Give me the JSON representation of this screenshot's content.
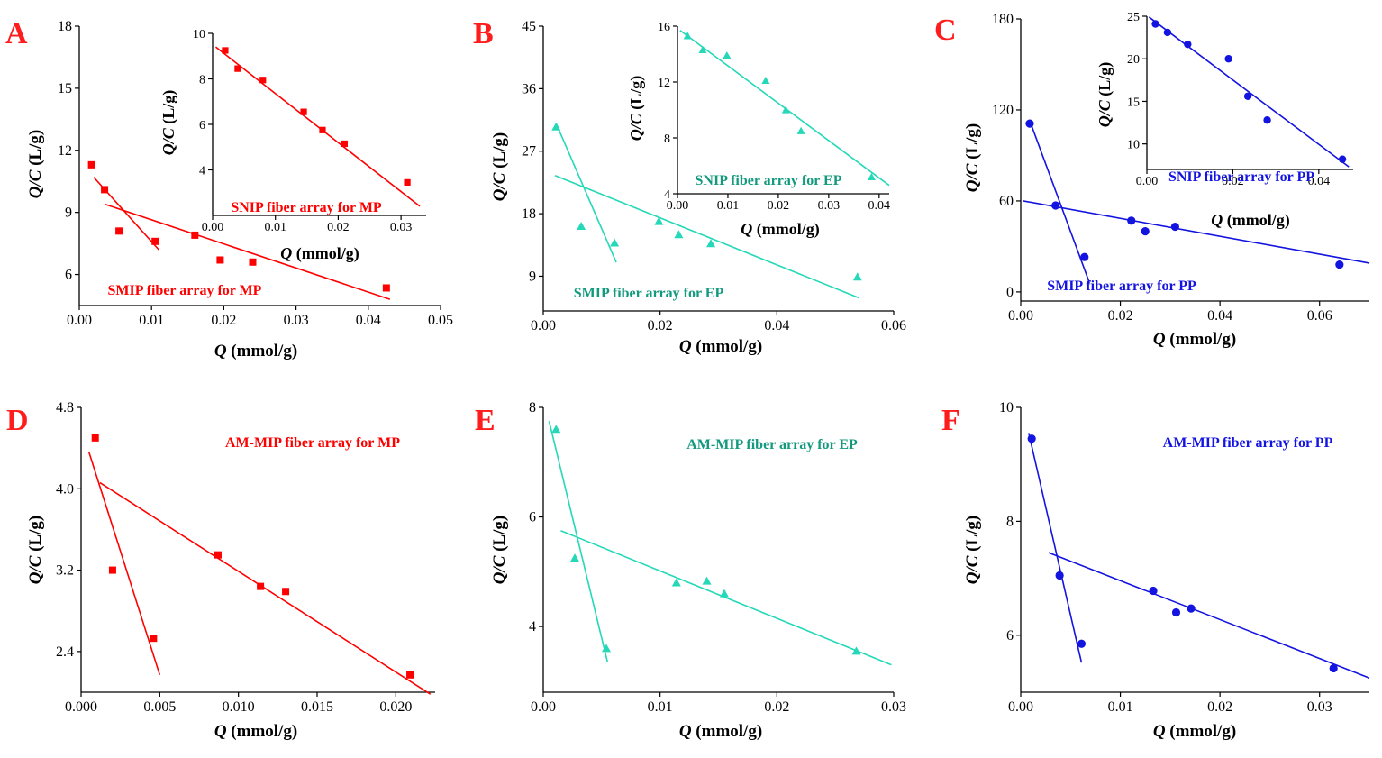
{
  "chart_data": [
    {
      "type": "scatter",
      "panel": "A",
      "color": "#ff0000",
      "marker": "square",
      "xlabel_q": "Q",
      "xlabel_unit": " (mmol/g)",
      "ylabel_q": "Q/C",
      "ylabel_unit": " (L/g)",
      "xlim": [
        0,
        0.05
      ],
      "ylim": [
        4.5,
        18
      ],
      "xticks": [
        0,
        0.01,
        0.02,
        0.03,
        0.04,
        0.05
      ],
      "xtick_labels": [
        "0.00",
        "0.01",
        "0.02",
        "0.03",
        "0.04",
        "0.05"
      ],
      "yticks": [
        6,
        9,
        12,
        15,
        18
      ],
      "ytick_labels": [
        "6",
        "9",
        "12",
        "15",
        "18"
      ],
      "points": [
        [
          0.0017,
          11.3
        ],
        [
          0.0035,
          10.1
        ],
        [
          0.0055,
          8.1
        ],
        [
          0.0105,
          7.6
        ],
        [
          0.016,
          7.9
        ],
        [
          0.0195,
          6.7
        ],
        [
          0.024,
          6.6
        ],
        [
          0.0425,
          5.35
        ]
      ],
      "fits": [
        [
          [
            0.002,
            10.7
          ],
          [
            0.011,
            7.2
          ]
        ],
        [
          [
            0.0035,
            9.4
          ],
          [
            0.043,
            4.8
          ]
        ]
      ],
      "annotation": "SMIP fiber array for MP",
      "inset": {
        "xlabel_q": "Q",
        "xlabel_unit": " (mmol/g)",
        "ylabel_q": "Q/C",
        "ylabel_unit": " (L/g)",
        "xlim": [
          0,
          0.034
        ],
        "ylim": [
          2,
          10
        ],
        "xticks": [
          0,
          0.01,
          0.02,
          0.03
        ],
        "xtick_labels": [
          "0.00",
          "0.01",
          "0.02",
          "0.03"
        ],
        "yticks": [
          4,
          6,
          8,
          10
        ],
        "ytick_labels": [
          "4",
          "6",
          "8",
          "10"
        ],
        "points": [
          [
            0.002,
            9.25
          ],
          [
            0.004,
            8.45
          ],
          [
            0.008,
            7.95
          ],
          [
            0.0145,
            6.55
          ],
          [
            0.0175,
            5.75
          ],
          [
            0.021,
            5.15
          ],
          [
            0.031,
            3.45
          ]
        ],
        "fits": [
          [
            [
              0.0005,
              9.4
            ],
            [
              0.033,
              2.4
            ]
          ]
        ],
        "annotation": "SNIP fiber array for MP"
      }
    },
    {
      "type": "scatter",
      "panel": "B",
      "color": "#24d8b8",
      "annot_color": "#139a7e",
      "marker": "triangle",
      "xlabel_q": "Q",
      "xlabel_unit": " (mmol/g)",
      "ylabel_q": "Q/C",
      "ylabel_unit": " (L/g)",
      "xlim": [
        0,
        0.06
      ],
      "ylim": [
        4,
        45
      ],
      "xticks": [
        0,
        0.02,
        0.04,
        0.06
      ],
      "xtick_labels": [
        "0.00",
        "0.02",
        "0.04",
        "0.06"
      ],
      "yticks": [
        9,
        18,
        27,
        36,
        45
      ],
      "ytick_labels": [
        "9",
        "18",
        "27",
        "36",
        "45"
      ],
      "points": [
        [
          0.0022,
          30.5
        ],
        [
          0.0065,
          16.2
        ],
        [
          0.0122,
          13.8
        ],
        [
          0.0198,
          16.9
        ],
        [
          0.0232,
          15.0
        ],
        [
          0.0287,
          13.7
        ],
        [
          0.0538,
          8.9
        ]
      ],
      "fits": [
        [
          [
            0.0022,
            31.0
          ],
          [
            0.0125,
            11.0
          ]
        ],
        [
          [
            0.002,
            23.5
          ],
          [
            0.054,
            5.9
          ]
        ]
      ],
      "annotation": "SMIP fiber array for EP",
      "inset": {
        "xlabel_q": "Q",
        "xlabel_unit": " (mmol/g)",
        "ylabel_q": "Q/C",
        "ylabel_unit": " (L/g)",
        "xlim": [
          0,
          0.042
        ],
        "ylim": [
          4,
          16
        ],
        "xticks": [
          0,
          0.01,
          0.02,
          0.03,
          0.04
        ],
        "xtick_labels": [
          "0.00",
          "0.01",
          "0.02",
          "0.03",
          "0.04"
        ],
        "yticks": [
          4,
          8,
          12,
          16
        ],
        "ytick_labels": [
          "4",
          "8",
          "12",
          "16"
        ],
        "points": [
          [
            0.002,
            15.3
          ],
          [
            0.005,
            14.3
          ],
          [
            0.0098,
            13.9
          ],
          [
            0.0175,
            12.1
          ],
          [
            0.0215,
            10.0
          ],
          [
            0.0245,
            8.5
          ],
          [
            0.0385,
            5.2
          ]
        ],
        "fits": [
          [
            [
              0.0005,
              15.7
            ],
            [
              0.042,
              4.6
            ]
          ]
        ],
        "annotation": "SNIP fiber array for EP"
      }
    },
    {
      "type": "scatter",
      "panel": "C",
      "color": "#1414e0",
      "marker": "circle",
      "xlabel_q": "Q",
      "xlabel_unit": " (mmol/g)",
      "ylabel_q": "Q/C",
      "ylabel_unit": " (L/g)",
      "xlim": [
        0,
        0.07
      ],
      "ylim": [
        -6,
        180
      ],
      "xticks": [
        0,
        0.02,
        0.04,
        0.06
      ],
      "xtick_labels": [
        "0.00",
        "0.02",
        "0.04",
        "0.06"
      ],
      "yticks": [
        0,
        60,
        120,
        180
      ],
      "ytick_labels": [
        "0",
        "60",
        "120",
        "180"
      ],
      "points": [
        [
          0.0018,
          111
        ],
        [
          0.007,
          57
        ],
        [
          0.0128,
          23
        ],
        [
          0.0222,
          47
        ],
        [
          0.025,
          40
        ],
        [
          0.031,
          43
        ],
        [
          0.064,
          18
        ]
      ],
      "fits": [
        [
          [
            0.0018,
            113
          ],
          [
            0.0138,
            6
          ]
        ],
        [
          [
            0.0005,
            60
          ],
          [
            0.07,
            19
          ]
        ]
      ],
      "annotation": "SMIP fiber array for PP",
      "inset": {
        "xlabel_q": "Q",
        "xlabel_unit": " (mmol/g)",
        "ylabel_q": "Q/C",
        "ylabel_unit": " (L/g)",
        "xlim": [
          0,
          0.048
        ],
        "ylim": [
          7,
          25
        ],
        "xticks": [
          0,
          0.02,
          0.04
        ],
        "xtick_labels": [
          "0.00",
          "0.02",
          "0.04"
        ],
        "yticks": [
          10,
          15,
          20,
          25
        ],
        "ytick_labels": [
          "10",
          "15",
          "20",
          "25"
        ],
        "points": [
          [
            0.002,
            24.1
          ],
          [
            0.0048,
            23.1
          ],
          [
            0.0095,
            21.7
          ],
          [
            0.019,
            20.0
          ],
          [
            0.0235,
            15.6
          ],
          [
            0.028,
            12.8
          ],
          [
            0.0455,
            8.2
          ]
        ],
        "fits": [
          [
            [
              0.0005,
              24.9
            ],
            [
              0.047,
              7.3
            ]
          ]
        ],
        "annotation": "SNIP fiber array for PP"
      }
    },
    {
      "type": "scatter",
      "panel": "D",
      "color": "#ff0000",
      "marker": "square",
      "xlabel_q": "Q",
      "xlabel_unit": " (mmol/g)",
      "ylabel_q": "Q/C",
      "ylabel_unit": " (L/g)",
      "xlim": [
        0,
        0.0225
      ],
      "ylim": [
        2.0,
        4.8
      ],
      "xticks": [
        0,
        0.005,
        0.01,
        0.015,
        0.02
      ],
      "xtick_labels": [
        "0.000",
        "0.005",
        "0.010",
        "0.015",
        "0.020"
      ],
      "yticks": [
        2.4,
        3.2,
        4.0,
        4.8
      ],
      "ytick_labels": [
        "2.4",
        "3.2",
        "4.0",
        "4.8"
      ],
      "points": [
        [
          0.0009,
          4.5
        ],
        [
          0.002,
          3.2
        ],
        [
          0.0046,
          2.53
        ],
        [
          0.0087,
          3.35
        ],
        [
          0.0114,
          3.04
        ],
        [
          0.013,
          2.99
        ],
        [
          0.0209,
          2.17
        ]
      ],
      "fits": [
        [
          [
            0.0005,
            4.36
          ],
          [
            0.005,
            2.17
          ]
        ],
        [
          [
            0.0012,
            4.06
          ],
          [
            0.0222,
            1.98
          ]
        ]
      ],
      "annotation": "AM-MIP fiber array for MP"
    },
    {
      "type": "scatter",
      "panel": "E",
      "color": "#24d8b8",
      "annot_color": "#139a7e",
      "marker": "triangle",
      "xlabel_q": "Q",
      "xlabel_unit": " (mmol/g)",
      "ylabel_q": "Q/C",
      "ylabel_unit": " (L/g)",
      "xlim": [
        0,
        0.03
      ],
      "ylim": [
        2.8,
        8
      ],
      "xticks": [
        0,
        0.01,
        0.02,
        0.03
      ],
      "xtick_labels": [
        "0.00",
        "0.01",
        "0.02",
        "0.03"
      ],
      "yticks": [
        4,
        6,
        8
      ],
      "ytick_labels": [
        "4",
        "6",
        "8"
      ],
      "points": [
        [
          0.0011,
          7.6
        ],
        [
          0.0027,
          5.25
        ],
        [
          0.0054,
          3.6
        ],
        [
          0.0114,
          4.8
        ],
        [
          0.014,
          4.83
        ],
        [
          0.0155,
          4.6
        ],
        [
          0.0268,
          3.55
        ]
      ],
      "fits": [
        [
          [
            0.0005,
            7.75
          ],
          [
            0.0055,
            3.35
          ]
        ],
        [
          [
            0.0015,
            5.75
          ],
          [
            0.0298,
            3.3
          ]
        ]
      ],
      "annotation": "AM-MIP fiber array for EP"
    },
    {
      "type": "scatter",
      "panel": "F",
      "color": "#1414e0",
      "marker": "circle",
      "xlabel_q": "Q",
      "xlabel_unit": " (mmol/g)",
      "ylabel_q": "Q/C",
      "ylabel_unit": " (L/g)",
      "xlim": [
        0,
        0.035
      ],
      "ylim": [
        5.0,
        10
      ],
      "xticks": [
        0,
        0.01,
        0.02,
        0.03
      ],
      "xtick_labels": [
        "0.00",
        "0.01",
        "0.02",
        "0.03"
      ],
      "yticks": [
        6,
        8,
        10
      ],
      "ytick_labels": [
        "6",
        "8",
        "10"
      ],
      "points": [
        [
          0.0011,
          9.45
        ],
        [
          0.0039,
          7.05
        ],
        [
          0.0061,
          5.85
        ],
        [
          0.0133,
          6.78
        ],
        [
          0.0156,
          6.4
        ],
        [
          0.0171,
          6.47
        ],
        [
          0.0314,
          5.42
        ]
      ],
      "fits": [
        [
          [
            0.0008,
            9.55
          ],
          [
            0.0061,
            5.52
          ]
        ],
        [
          [
            0.0028,
            7.45
          ],
          [
            0.035,
            5.25
          ]
        ]
      ],
      "annotation": "AM-MIP fiber array for PP"
    }
  ]
}
